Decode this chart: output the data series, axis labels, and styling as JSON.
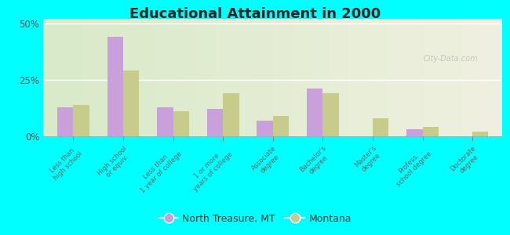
{
  "title": "Educational Attainment in 2000",
  "categories": [
    "Less than\nhigh school",
    "High school\nor equiv.",
    "Less than\n1 year of college",
    "1 or more\nyears of college",
    "Associate\ndegree",
    "Bachelor's\ndegree",
    "Master's\ndegree",
    "Profess.\nschool degree",
    "Doctorate\ndegree"
  ],
  "north_treasure": [
    13.0,
    44.0,
    13.0,
    12.0,
    7.0,
    21.0,
    0.0,
    3.0,
    0.0
  ],
  "montana": [
    14.0,
    29.0,
    11.0,
    19.0,
    9.0,
    19.0,
    8.0,
    4.0,
    2.0
  ],
  "color_north": "#c9a0dc",
  "color_montana": "#c8cc8a",
  "bg_outer": "#00ffff",
  "legend_label_north": "North Treasure, MT",
  "legend_label_montana": "Montana",
  "yticks": [
    0,
    25,
    50
  ],
  "ylim": [
    0,
    52
  ]
}
